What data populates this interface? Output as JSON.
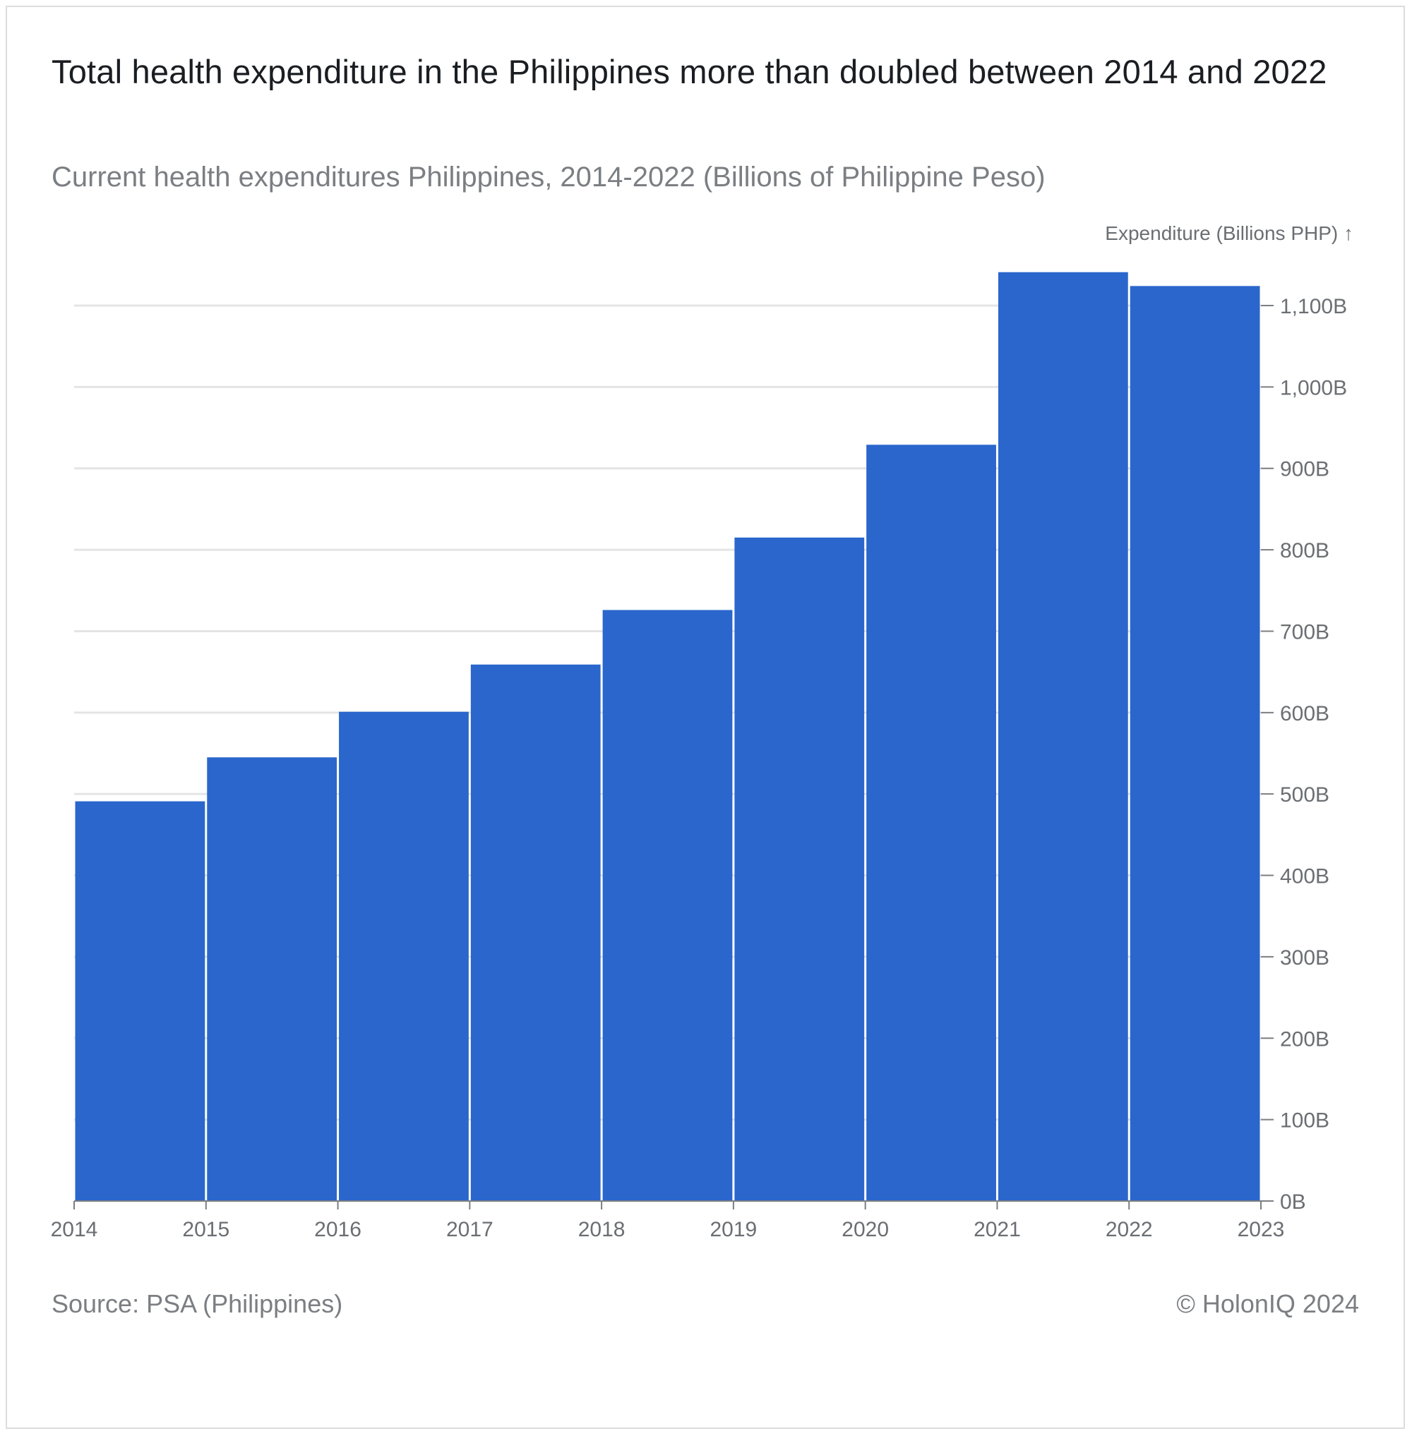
{
  "title": "Total health expenditure in the Philippines more than doubled between 2014 and 2022",
  "subtitle": "Current health expenditures Philippines, 2014-2022 (Billions of Philippine Peso)",
  "source": "Source: PSA (Philippines)",
  "credit": "© HolonIQ 2024",
  "colors": {
    "bar": "#2a66cc",
    "grid": "#e4e4e4",
    "axis": "#7b7e82",
    "tick_text": "#6b6e72"
  },
  "chart_data": {
    "type": "bar",
    "title": "Total health expenditure in the Philippines more than doubled between 2014 and 2022",
    "subtitle": "Current health expenditures Philippines, 2014-2022 (Billions of Philippine Peso)",
    "ylabel": "Expenditure (Billions PHP) ↑",
    "xlabel": "",
    "y_axis_position": "right",
    "grid": true,
    "x_ticks": [
      "2014",
      "2015",
      "2016",
      "2017",
      "2018",
      "2019",
      "2020",
      "2021",
      "2022",
      "2023"
    ],
    "y_ticks": [
      "0B",
      "100B",
      "200B",
      "300B",
      "400B",
      "500B",
      "600B",
      "700B",
      "800B",
      "900B",
      "1,000B",
      "1,100B"
    ],
    "y_tick_values": [
      0,
      100,
      200,
      300,
      400,
      500,
      600,
      700,
      800,
      900,
      1000,
      1100
    ],
    "categories": [
      "2014",
      "2015",
      "2016",
      "2017",
      "2018",
      "2019",
      "2020",
      "2021",
      "2022"
    ],
    "values": [
      491,
      545,
      601,
      659,
      726,
      815,
      929,
      1141,
      1124
    ],
    "xlim": [
      2014,
      2023
    ],
    "ylim": [
      0,
      1100
    ]
  }
}
